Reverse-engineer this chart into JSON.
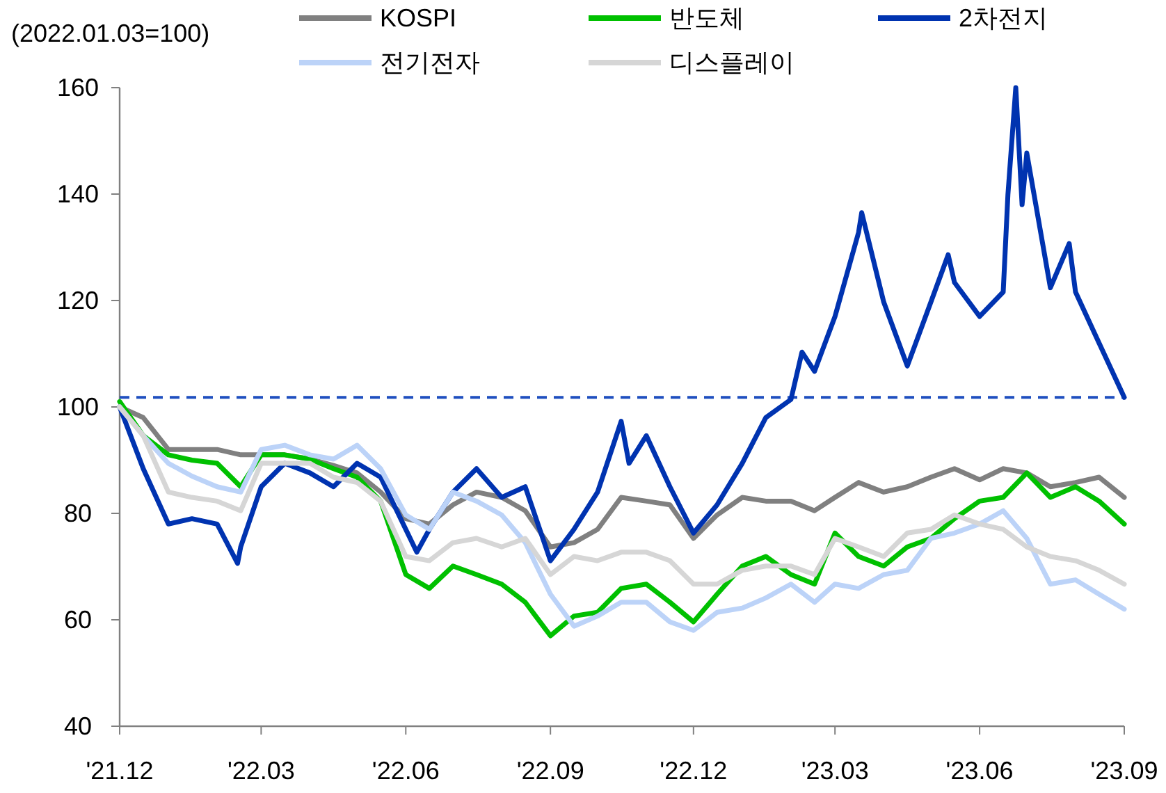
{
  "chart_data": {
    "type": "line",
    "ylabel": "(2022.01.03=100)",
    "x": [
      "2021-12-01",
      "2021-12-16",
      "2022-01-01",
      "2022-01-16",
      "2022-02-01",
      "2022-02-16",
      "2022-03-01",
      "2022-03-16",
      "2022-04-01",
      "2022-04-16",
      "2022-05-01",
      "2022-05-16",
      "2022-06-01",
      "2022-06-16",
      "2022-07-01",
      "2022-07-16",
      "2022-08-01",
      "2022-08-16",
      "2022-09-01",
      "2022-09-16",
      "2022-10-01",
      "2022-10-16",
      "2022-11-01",
      "2022-11-16",
      "2022-12-01",
      "2022-12-16",
      "2023-01-01",
      "2023-01-16",
      "2023-02-01",
      "2023-02-16",
      "2023-03-01",
      "2023-03-16",
      "2023-04-01",
      "2023-04-16",
      "2023-05-01",
      "2023-05-16",
      "2023-06-01",
      "2023-06-16",
      "2023-07-01",
      "2023-07-16",
      "2023-08-01",
      "2023-08-16",
      "2023-09-01"
    ],
    "series": [
      {
        "name": "KOSPI",
        "color": "#808080",
        "values": [
          100,
          98,
          92,
          92,
          92,
          91,
          91,
          91,
          90.2,
          89,
          87.6,
          84,
          79,
          78,
          81.6,
          84,
          83,
          80.5,
          73.7,
          74.5,
          77,
          83,
          82.3,
          81.6,
          75.3,
          79.7,
          83,
          82.3,
          82.3,
          80.5,
          83,
          85.8,
          84,
          85,
          86.8,
          88.4,
          86.3,
          88.4,
          87.6,
          85,
          85.8,
          86.8,
          83
        ]
      },
      {
        "name": "반도체",
        "color": "#00c000",
        "values": [
          101,
          94.6,
          91,
          90,
          89.4,
          85,
          91,
          91,
          90.2,
          88.4,
          86.8,
          82.3,
          68.5,
          65.9,
          70.1,
          68.5,
          66.7,
          63.3,
          57,
          60.7,
          61.4,
          65.9,
          66.7,
          63.3,
          59.6,
          64.8,
          70.1,
          71.9,
          68.5,
          66.7,
          76.3,
          71.9,
          70.1,
          73.7,
          75.3,
          79,
          82.3,
          83,
          87.6,
          83,
          85,
          82.3,
          78
        ]
      },
      {
        "name": "2차전지",
        "color": "#0033b0",
        "x": [
          "2021-12-01",
          "2021-12-16",
          "2022-01-01",
          "2022-01-16",
          "2022-02-01",
          "2022-02-14",
          "2022-02-16",
          "2022-03-01",
          "2022-03-16",
          "2022-04-01",
          "2022-04-16",
          "2022-05-01",
          "2022-05-16",
          "2022-06-01",
          "2022-06-08",
          "2022-06-16",
          "2022-07-01",
          "2022-07-16",
          "2022-08-01",
          "2022-08-16",
          "2022-09-01",
          "2022-09-16",
          "2022-10-01",
          "2022-10-16",
          "2022-10-21",
          "2022-11-01",
          "2022-11-16",
          "2022-12-01",
          "2022-12-16",
          "2023-01-01",
          "2023-01-16",
          "2023-02-01",
          "2023-02-08",
          "2023-02-16",
          "2023-03-01",
          "2023-03-16",
          "2023-03-18",
          "2023-04-01",
          "2023-04-16",
          "2023-05-01",
          "2023-05-12",
          "2023-05-16",
          "2023-06-01",
          "2023-06-16",
          "2023-06-19",
          "2023-06-24",
          "2023-06-28",
          "2023-07-01",
          "2023-07-16",
          "2023-07-28",
          "2023-08-01",
          "2023-08-16",
          "2023-09-01"
        ],
        "values": [
          100,
          88.4,
          78,
          79,
          78,
          70.6,
          73.7,
          85,
          89.4,
          87.6,
          85,
          89.4,
          86.8,
          77,
          72.7,
          77,
          84,
          88.4,
          83,
          85,
          71.1,
          77,
          84,
          97.3,
          89.4,
          94.6,
          85,
          76.3,
          81.6,
          89.4,
          98,
          101.4,
          110.3,
          106.7,
          117,
          132.8,
          136.5,
          119.7,
          107.7,
          119.7,
          128.6,
          123.4,
          117,
          121.6,
          139.9,
          160,
          138,
          147.7,
          122.4,
          130.7,
          121.6,
          112,
          101.8
        ]
      },
      {
        "name": "전기전자",
        "color": "#bcd3f8",
        "values": [
          100,
          94.6,
          89.4,
          87,
          85,
          84,
          92,
          92.8,
          91,
          90.2,
          92.8,
          88.4,
          79.7,
          77,
          84,
          82.3,
          79.7,
          74.5,
          64.8,
          58.8,
          60.7,
          63.3,
          63.3,
          59.6,
          58,
          61.4,
          62.2,
          64.1,
          66.7,
          63.3,
          66.7,
          65.9,
          68.5,
          69.3,
          75.3,
          76.3,
          78,
          80.5,
          75.3,
          66.7,
          67.5,
          64.8,
          62
        ]
      },
      {
        "name": "디스플레이",
        "color": "#d6d6d6",
        "values": [
          100,
          94.6,
          84,
          83,
          82.3,
          80.5,
          89.4,
          89.4,
          89.4,
          86.8,
          85.8,
          82.3,
          71.9,
          71.1,
          74.5,
          75.3,
          73.7,
          75.3,
          68.5,
          71.9,
          71.1,
          72.7,
          72.7,
          71.1,
          66.7,
          66.7,
          69.3,
          70.1,
          70.1,
          68.5,
          75.3,
          73.7,
          71.9,
          76.3,
          77,
          79.7,
          78,
          77,
          73.7,
          71.9,
          71.1,
          69.3,
          66.7
        ]
      }
    ],
    "xlim": [
      "2021-12-01",
      "2023-09-01"
    ],
    "xticks": [
      {
        "value": "2021-12-01",
        "label": "'21.12"
      },
      {
        "value": "2022-03-01",
        "label": "'22.03"
      },
      {
        "value": "2022-06-01",
        "label": "'22.06"
      },
      {
        "value": "2022-09-01",
        "label": "'22.09"
      },
      {
        "value": "2022-12-01",
        "label": "'22.12"
      },
      {
        "value": "2023-03-01",
        "label": "'23.03"
      },
      {
        "value": "2023-06-01",
        "label": "'23.06"
      },
      {
        "value": "2023-09-01",
        "label": "'23.09"
      }
    ],
    "ylim": [
      40,
      160
    ],
    "yticks": [
      40,
      60,
      80,
      100,
      120,
      140,
      160
    ],
    "ref_lines": [
      {
        "axis": "y",
        "value": 101.8,
        "label": null,
        "color": "#1f4fbf",
        "line_style": "dashed"
      }
    ],
    "legend": "top",
    "grid": false,
    "marker": "none",
    "line_style": "solid"
  }
}
